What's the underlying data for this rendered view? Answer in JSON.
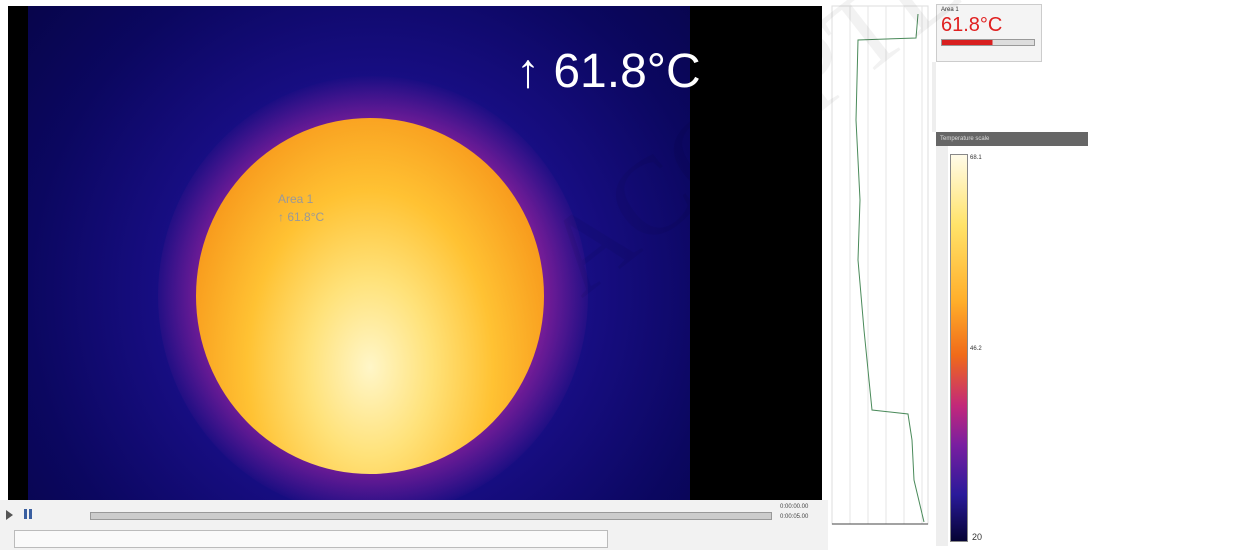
{
  "viewer": {
    "overlay_temperature": "↑ 61.8°C",
    "spot_label": "Area 1",
    "spot_value": "↑ 61.8°C",
    "time_current": "0:00:00.00",
    "time_total": "0:00:05.00"
  },
  "area_panel": {
    "label": "Area 1",
    "value": "61.8°C"
  },
  "scale_panel": {
    "header": "Temperature scale",
    "max_label": "68.1",
    "mid_label": "46.2",
    "min_label": "20"
  },
  "watermark": "ACCEPTED MANUSCRIPT"
}
